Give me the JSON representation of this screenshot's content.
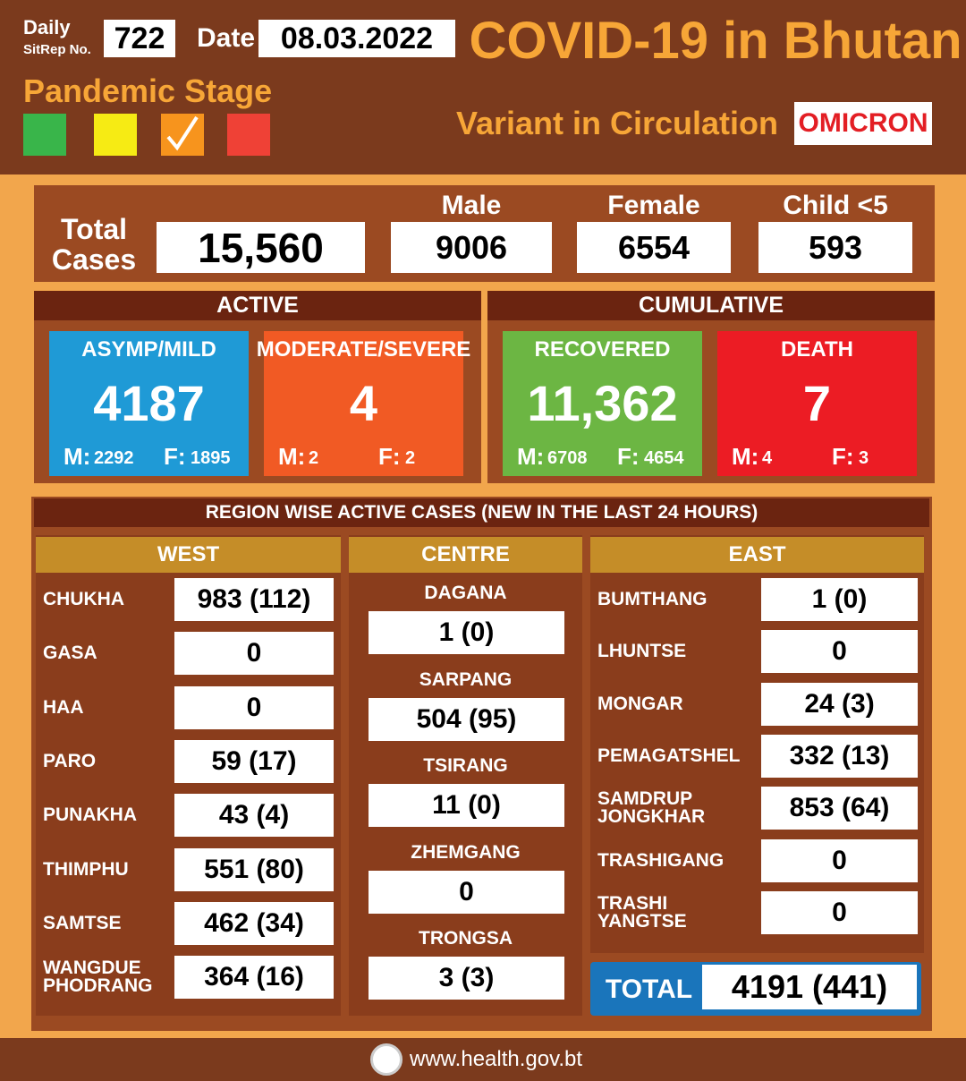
{
  "header": {
    "sitrep_label_1": "Daily",
    "sitrep_label_2": "SitRep No.",
    "sitrep_no": "722",
    "date_label": "Date",
    "date": "08.03.2022",
    "title": "COVID-19 in Bhutan",
    "stage_label": "Pandemic Stage",
    "variant_label": "Variant in Circulation",
    "variant": "OMICRON"
  },
  "totals": {
    "label": "Total Cases",
    "total": "15,560",
    "male_label": "Male",
    "male": "9006",
    "female_label": "Female",
    "female": "6554",
    "child_label": "Child <5",
    "child": "593"
  },
  "active": {
    "title": "ACTIVE",
    "cards": [
      {
        "label": "ASYMP/MILD",
        "value": "4187",
        "m_label": "M:",
        "m": "2292",
        "f_label": "F:",
        "f": "1895"
      },
      {
        "label": "MODERATE/SEVERE",
        "value": "4",
        "m_label": "M:",
        "m": "2",
        "f_label": "F:",
        "f": "2"
      }
    ]
  },
  "cumulative": {
    "title": "CUMULATIVE",
    "cards": [
      {
        "label": "RECOVERED",
        "value": "11,362",
        "m_label": "M:",
        "m": "6708",
        "f_label": "F:",
        "f": "4654"
      },
      {
        "label": "DEATH",
        "value": "7",
        "m_label": "M:",
        "m": "4",
        "f_label": "F:",
        "f": "3"
      }
    ]
  },
  "regions": {
    "title": "REGION WISE ACTIVE CASES (NEW IN THE LAST 24 HOURS)",
    "columns": [
      {
        "name": "WEST",
        "rows": [
          {
            "name": "CHUKHA",
            "value": "983 (112)"
          },
          {
            "name": "GASA",
            "value": "0"
          },
          {
            "name": "HAA",
            "value": "0"
          },
          {
            "name": "PARO",
            "value": "59 (17)"
          },
          {
            "name": "PUNAKHA",
            "value": "43 (4)"
          },
          {
            "name": "THIMPHU",
            "value": "551 (80)"
          },
          {
            "name": "SAMTSE",
            "value": "462 (34)"
          },
          {
            "name": "WANGDUE PHODRANG",
            "value": "364 (16)"
          }
        ]
      },
      {
        "name": "CENTRE",
        "rows": [
          {
            "name": "DAGANA",
            "value": "1 (0)"
          },
          {
            "name": "SARPANG",
            "value": "504 (95)"
          },
          {
            "name": "TSIRANG",
            "value": "11 (0)"
          },
          {
            "name": "ZHEMGANG",
            "value": "0"
          },
          {
            "name": "TRONGSA",
            "value": "3 (3)"
          }
        ]
      },
      {
        "name": "EAST",
        "rows": [
          {
            "name": "BUMTHANG",
            "value": "1 (0)"
          },
          {
            "name": "LHUNTSE",
            "value": "0"
          },
          {
            "name": "MONGAR",
            "value": "24 (3)"
          },
          {
            "name": "PEMAGATSHEL",
            "value": "332 (13)"
          },
          {
            "name": "SAMDRUP JONGKHAR",
            "value": "853 (64)"
          },
          {
            "name": "TRASHIGANG",
            "value": "0"
          },
          {
            "name": "TRASHI YANGTSE",
            "value": "0"
          }
        ]
      }
    ],
    "total_label": "TOTAL",
    "total": "4191 (441)"
  },
  "footer": {
    "url": "www.health.gov.bt"
  }
}
